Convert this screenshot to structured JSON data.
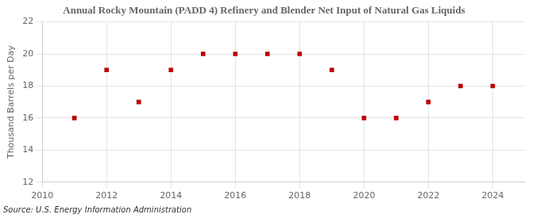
{
  "chart_data": {
    "type": "scatter",
    "title": "Annual Rocky Mountain (PADD 4) Refinery and Blender Net Input of Natural Gas Liquids",
    "ylabel": "Thousand Barrels per Day",
    "annotations": [
      "Source: U.S. Energy Information Administration"
    ],
    "x": [
      2011,
      2012,
      2013,
      2014,
      2015,
      2016,
      2017,
      2018,
      2019,
      2020,
      2021,
      2022,
      2023,
      2024
    ],
    "values": [
      16.0,
      19.0,
      17.0,
      19.0,
      20.0,
      20.0,
      20.0,
      20.0,
      19.0,
      16.0,
      16.0,
      17.0,
      18.0,
      18.0
    ],
    "color": "#bb0000",
    "marker": "square",
    "xlim": [
      2010,
      2025
    ],
    "ylim": [
      12,
      22
    ],
    "xticks": [
      2010,
      2012,
      2014,
      2016,
      2018,
      2020,
      2022,
      2024
    ],
    "yticks": [
      12,
      14,
      16,
      18,
      20,
      22
    ],
    "grid": true
  }
}
